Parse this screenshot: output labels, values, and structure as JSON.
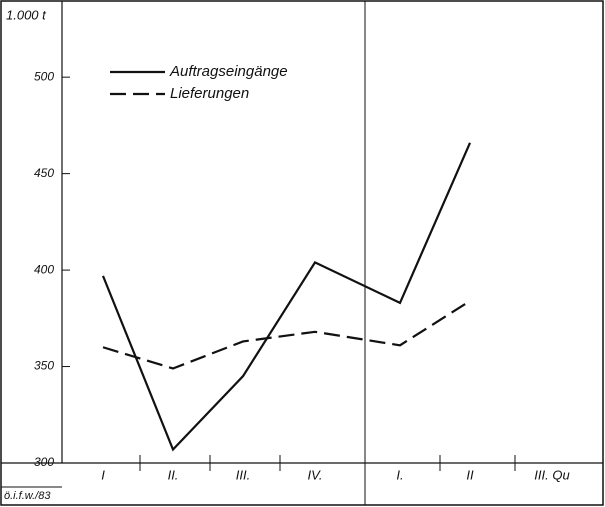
{
  "chart_data": {
    "type": "line",
    "y_label": "1.000 t",
    "footer": "ö.i.f.w./83",
    "categories": [
      "I",
      "II.",
      "III.",
      "IV.",
      "I.",
      "II",
      "III. Qu"
    ],
    "series": [
      {
        "name": "Auftragseingänge",
        "color": "#111111",
        "dash": "solid",
        "values": [
          397,
          307,
          345,
          404,
          383,
          466,
          null
        ]
      },
      {
        "name": "Lieferungen",
        "color": "#111111",
        "dash": "dashed",
        "values": [
          360,
          349,
          363,
          368,
          361,
          384,
          null
        ]
      }
    ],
    "ylim": [
      300,
      540
    ],
    "yticks": [
      300,
      350,
      400,
      450,
      500
    ]
  }
}
